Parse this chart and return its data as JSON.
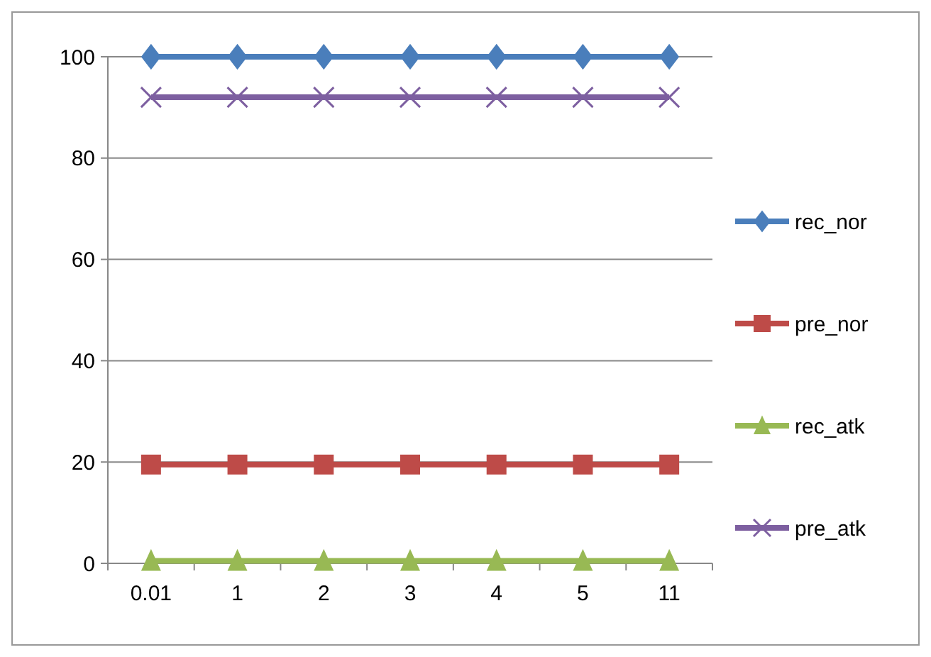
{
  "chart_data": {
    "type": "line",
    "categories": [
      "0.01",
      "1",
      "2",
      "3",
      "4",
      "5",
      "11"
    ],
    "series": [
      {
        "name": "rec_nor",
        "color": "#4a7ebb",
        "marker": "diamond",
        "values": [
          100,
          100,
          100,
          100,
          100,
          100,
          100
        ]
      },
      {
        "name": "pre_nor",
        "color": "#be4b48",
        "marker": "square",
        "values": [
          19.5,
          19.5,
          19.5,
          19.5,
          19.5,
          19.5,
          19.5
        ]
      },
      {
        "name": "rec_atk",
        "color": "#98b954",
        "marker": "triangle",
        "values": [
          0.5,
          0.5,
          0.5,
          0.5,
          0.5,
          0.5,
          0.5
        ]
      },
      {
        "name": "pre_atk",
        "color": "#7d5fa0",
        "marker": "cross",
        "values": [
          92,
          92,
          92,
          92,
          92,
          92,
          92
        ]
      }
    ],
    "ylim": [
      0,
      100
    ],
    "yticks": [
      0,
      20,
      40,
      60,
      80,
      100
    ],
    "grid": "y",
    "legend": "right"
  }
}
